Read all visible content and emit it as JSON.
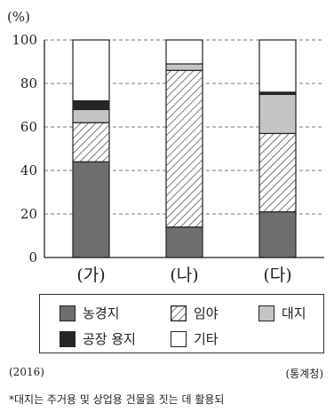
{
  "chart_data": {
    "type": "bar",
    "stacked": true,
    "ylabel": "(%)",
    "ylim": [
      0,
      100
    ],
    "yticks": [
      0,
      20,
      40,
      60,
      80,
      100
    ],
    "grid": true,
    "categories": [
      "(가)",
      "(나)",
      "(다)"
    ],
    "series": [
      {
        "name": "농경지",
        "color": "#6e6e6e",
        "pattern": "solid",
        "values": [
          44,
          14,
          21
        ]
      },
      {
        "name": "임야",
        "color": "#ffffff",
        "pattern": "hatch",
        "values": [
          18,
          72,
          36
        ]
      },
      {
        "name": "대지",
        "color": "#c4c4c4",
        "pattern": "solid",
        "values": [
          6,
          3,
          18
        ]
      },
      {
        "name": "공장 용지",
        "color": "#262626",
        "pattern": "solid",
        "values": [
          4,
          0,
          1
        ]
      },
      {
        "name": "기타",
        "color": "#ffffff",
        "pattern": "solid",
        "values": [
          28,
          11,
          24
        ]
      }
    ]
  },
  "footer": {
    "year": "(2016)",
    "source": "(통계청)",
    "note": "*대지는 주거용 및 상업용 건물을 짓는 데 활용되"
  }
}
